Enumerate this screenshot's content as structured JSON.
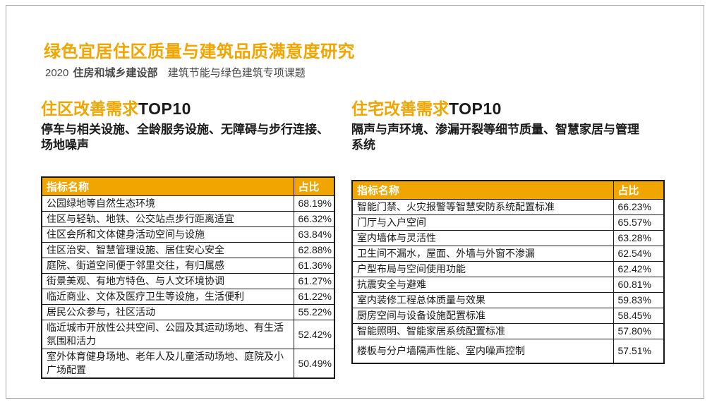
{
  "colors": {
    "accent": "#F0A500",
    "text": "#1A1A1A",
    "subtitle_gray": "#4A4A4A",
    "header_text": "#FFFFFF",
    "frame": "#A6A6A6",
    "border": "#1A1A1A",
    "bg": "#FFFFFF"
  },
  "page": {
    "title": "绿色宜居住区质量与建筑品质满意度研究",
    "subtitle": {
      "year": "2020",
      "ministry": "住房和城乡建设部",
      "topic": "建筑节能与绿色建筑专项课题"
    }
  },
  "sections": [
    {
      "heading_highlight": "住区改善需求",
      "heading_rest": "TOP10",
      "summary": "停车与相关设施、全龄服务设施、无障碍与步行连接、场地噪声",
      "table": {
        "columns": [
          "指标名称",
          "占比"
        ],
        "rows": [
          {
            "label": "公园绿地等自然生态环境",
            "value": "68.19%"
          },
          {
            "label": "住区与轻轨、地铁、公交站点步行距离适宜",
            "value": "66.32%"
          },
          {
            "label": "住区会所和文体健身活动空间与设施",
            "value": "63.84%"
          },
          {
            "label": "住区治安、智慧管理设施、居住安心安全",
            "value": "62.88%"
          },
          {
            "label": "庭院、街道空间便于邻里交往，有归属感",
            "value": "61.36%"
          },
          {
            "label": "街景美观、有地方特色、与人文环境协调",
            "value": "61.27%"
          },
          {
            "label": "临近商业、文体及医疗卫生等设施，生活便利",
            "value": "61.22%"
          },
          {
            "label": "居民公众参与，社区活动",
            "value": "55.22%"
          },
          {
            "label": "临近城市开放性公共空间、公园及其运动场地、有生活氛围和活力",
            "value": "52.42%"
          },
          {
            "label": "室外体育健身场地、老年人及儿童活动场地、庭院及小广场配置",
            "value": "50.49%"
          }
        ]
      }
    },
    {
      "heading_highlight": "住宅改善需求",
      "heading_rest": "TOP10",
      "summary": "隔声与声环境、渗漏开裂等细节质量、智慧家居与管理系统",
      "table": {
        "columns": [
          "指标名称",
          "占比"
        ],
        "rows": [
          {
            "label": "智能门禁、火灾报警等智慧安防系统配置标准",
            "value": "66.23%"
          },
          {
            "label": "门厅与入户空间",
            "value": "65.57%"
          },
          {
            "label": "室内墙体与灵活性",
            "value": "63.28%"
          },
          {
            "label": "卫生间不漏水，屋面、外墙与外窗不渗漏",
            "value": "62.54%"
          },
          {
            "label": "户型布局与空间使用功能",
            "value": "62.42%"
          },
          {
            "label": "抗震安全与避难",
            "value": "60.81%"
          },
          {
            "label": "室内装修工程总体质量与效果",
            "value": "59.83%"
          },
          {
            "label": "厨房空间与设备设施配置标准",
            "value": "58.45%"
          },
          {
            "label": "智能照明、智能家居系统配置标准",
            "value": "57.80%"
          },
          {
            "label": "楼板与分户墙隔声性能、室内噪声控制",
            "value": "57.51%"
          }
        ]
      }
    }
  ]
}
